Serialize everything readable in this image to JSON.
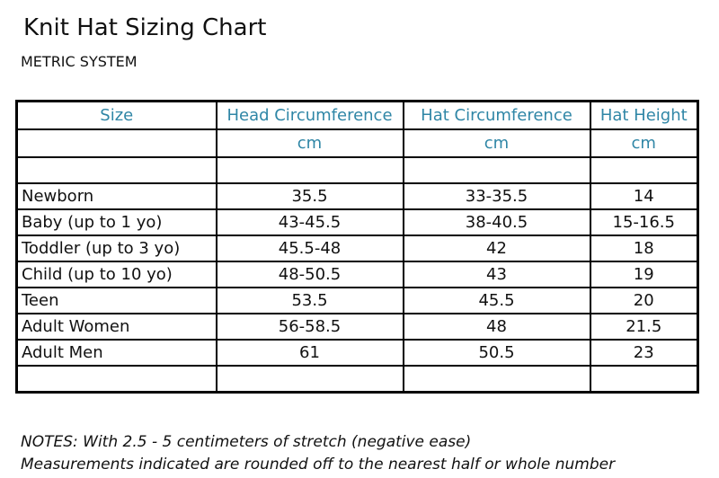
{
  "title": "Knit Hat Sizing Chart",
  "subtitle": "METRIC SYSTEM",
  "table": {
    "headers": [
      "Size",
      "Head Circumference",
      "Hat Circumference",
      "Hat Height"
    ],
    "units": [
      "",
      "cm",
      "cm",
      "cm"
    ],
    "rows": [
      [
        "Newborn",
        "35.5",
        "33-35.5",
        "14"
      ],
      [
        "Baby (up to 1 yo)",
        "43-45.5",
        "38-40.5",
        "15-16.5"
      ],
      [
        "Toddler (up to 3 yo)",
        "45.5-48",
        "42",
        "18"
      ],
      [
        "Child (up to 10 yo)",
        "48-50.5",
        "43",
        "19"
      ],
      [
        "Teen",
        "53.5",
        "45.5",
        "20"
      ],
      [
        "Adult Women",
        "56-58.5",
        "48",
        "21.5"
      ],
      [
        "Adult Men",
        "61",
        "50.5",
        "23"
      ]
    ]
  },
  "notes": [
    "NOTES: With 2.5 - 5 centimeters of stretch (negative ease)",
    "Measurements indicated are rounded off to the nearest half or whole number"
  ],
  "colors": {
    "header_text": "#2f86a6",
    "body_text": "#111111",
    "border": "#000000"
  }
}
